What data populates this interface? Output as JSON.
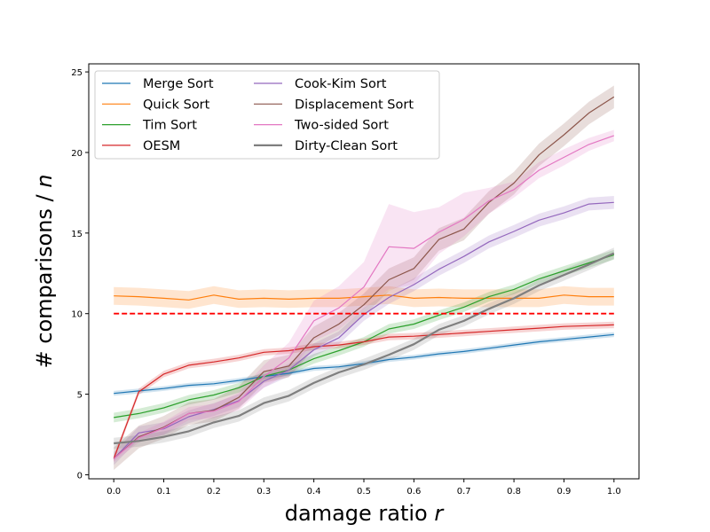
{
  "chart_data": {
    "type": "line",
    "xlabel": "damage ratio r",
    "xlabel_main": "damage ratio ",
    "xlabel_var": "r",
    "ylabel": "# comparisons / n",
    "ylabel_main": "# comparisons / ",
    "ylabel_var": "n",
    "xlim": [
      -0.05,
      1.05
    ],
    "ylim": [
      -0.25,
      25.5
    ],
    "xticks": [
      0.0,
      0.1,
      0.2,
      0.3,
      0.4,
      0.5,
      0.6,
      0.7,
      0.8,
      0.9,
      1.0
    ],
    "xtick_labels": [
      "0.0",
      "0.1",
      "0.2",
      "0.3",
      "0.4",
      "0.5",
      "0.6",
      "0.7",
      "0.8",
      "0.9",
      "1.0"
    ],
    "yticks": [
      0,
      5,
      10,
      15,
      20,
      25
    ],
    "ytick_labels": [
      "0",
      "5",
      "10",
      "15",
      "20",
      "25"
    ],
    "grid": false,
    "legend_position": "top-left",
    "legend_columns": 2,
    "x": [
      0.0,
      0.05,
      0.1,
      0.15,
      0.2,
      0.25,
      0.3,
      0.35,
      0.4,
      0.45,
      0.5,
      0.55,
      0.6,
      0.65,
      0.7,
      0.75,
      0.8,
      0.85,
      0.9,
      0.95,
      1.0
    ],
    "reference_line": {
      "y": 10,
      "color": "#ff0000",
      "style": "dashed"
    },
    "series": [
      {
        "name": "Merge Sort",
        "color": "#1f77b4",
        "width": 1.2,
        "band": 0.15,
        "values": [
          5.05,
          5.2,
          5.35,
          5.55,
          5.65,
          5.85,
          6.1,
          6.3,
          6.6,
          6.7,
          6.9,
          7.15,
          7.3,
          7.5,
          7.65,
          7.85,
          8.05,
          8.25,
          8.4,
          8.55,
          8.7
        ],
        "lower": [],
        "upper": []
      },
      {
        "name": "Quick Sort",
        "color": "#ff7f0e",
        "width": 1.2,
        "band": 0.55,
        "values": [
          11.1,
          11.05,
          10.95,
          10.85,
          11.15,
          10.9,
          10.95,
          10.9,
          10.95,
          10.95,
          11.05,
          11.15,
          10.95,
          11.0,
          10.95,
          10.95,
          10.95,
          10.95,
          11.15,
          11.05,
          11.05
        ],
        "lower": [],
        "upper": []
      },
      {
        "name": "Tim Sort",
        "color": "#2ca02c",
        "width": 1.2,
        "band": 0.3,
        "values": [
          3.55,
          3.8,
          4.15,
          4.65,
          4.95,
          5.4,
          6.1,
          6.5,
          7.2,
          7.7,
          8.25,
          9.05,
          9.35,
          9.9,
          10.4,
          11.05,
          11.5,
          12.15,
          12.65,
          13.15,
          13.65
        ],
        "lower": [],
        "upper": []
      },
      {
        "name": "OESM",
        "color": "#d62728",
        "width": 1.2,
        "band": 0.2,
        "values": [
          1.0,
          5.15,
          6.25,
          6.8,
          7.0,
          7.25,
          7.6,
          7.7,
          7.95,
          8.05,
          8.25,
          8.55,
          8.6,
          8.7,
          8.8,
          8.9,
          9.0,
          9.1,
          9.2,
          9.25,
          9.3
        ],
        "lower": [],
        "upper": []
      },
      {
        "name": "Cook-Kim Sort",
        "color": "#9467bd",
        "width": 1.2,
        "band": 0.4,
        "values": [
          1.0,
          2.6,
          2.85,
          3.6,
          4.05,
          4.6,
          5.8,
          6.5,
          7.75,
          8.5,
          9.95,
          11.0,
          11.8,
          12.75,
          13.55,
          14.45,
          15.1,
          15.8,
          16.25,
          16.8,
          16.9
        ],
        "lower": [],
        "upper": []
      },
      {
        "name": "Displacement Sort",
        "color": "#8c564b",
        "width": 1.2,
        "band": 0.7,
        "values": [
          1.0,
          2.35,
          2.95,
          3.8,
          4.0,
          4.8,
          6.4,
          6.75,
          8.5,
          9.35,
          10.55,
          12.1,
          12.8,
          14.6,
          15.25,
          16.9,
          18.1,
          19.85,
          21.1,
          22.45,
          23.45
        ],
        "lower": [],
        "upper": []
      },
      {
        "name": "Two-sided Sort",
        "color": "#e377c2",
        "width": 1.2,
        "band": 0.6,
        "values": [
          1.0,
          2.3,
          2.9,
          3.8,
          3.95,
          4.55,
          6.1,
          7.25,
          9.55,
          10.35,
          11.65,
          14.15,
          14.05,
          15.05,
          15.85,
          17.0,
          17.7,
          18.9,
          19.7,
          20.5,
          21.05
        ],
        "lower": [
          0.8,
          2.0,
          2.5,
          3.4,
          3.5,
          4.0,
          5.4,
          6.3,
          8.3,
          9.0,
          10.3,
          11.5,
          11.8,
          13.7,
          14.8,
          16.2,
          17.2,
          18.4,
          19.2,
          20.1,
          20.7
        ],
        "upper": [
          1.2,
          2.6,
          3.3,
          4.2,
          4.4,
          5.1,
          6.8,
          8.2,
          10.8,
          11.7,
          13.2,
          16.8,
          16.3,
          16.6,
          17.5,
          17.8,
          18.2,
          19.4,
          20.2,
          20.9,
          21.4
        ]
      },
      {
        "name": "Dirty-Clean Sort",
        "color": "#7f7f7f",
        "width": 2.2,
        "band": 0.35,
        "values": [
          1.95,
          2.1,
          2.35,
          2.7,
          3.25,
          3.65,
          4.45,
          4.9,
          5.7,
          6.35,
          6.85,
          7.45,
          8.1,
          9.0,
          9.55,
          10.3,
          10.95,
          11.75,
          12.4,
          13.05,
          13.75
        ],
        "lower": [],
        "upper": []
      }
    ]
  }
}
